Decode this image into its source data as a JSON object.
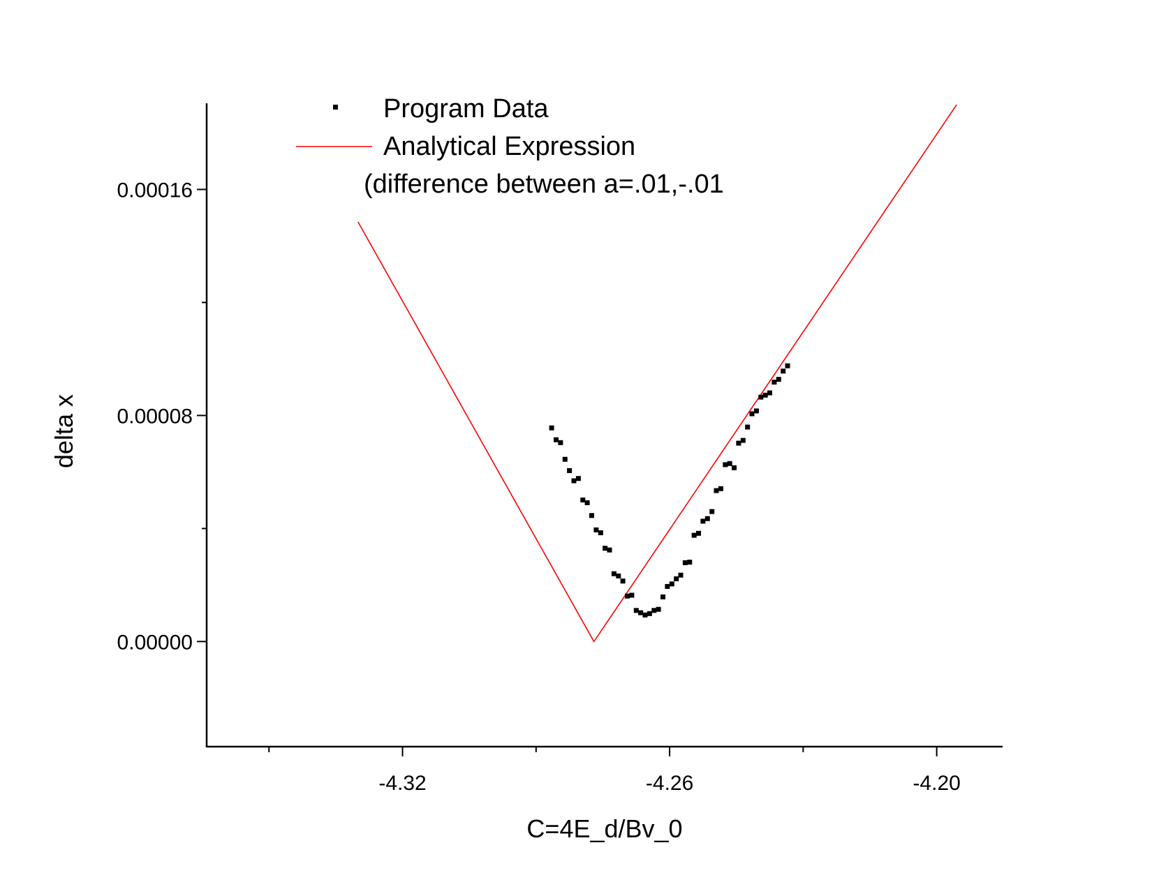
{
  "chart_data": {
    "type": "scatter",
    "xlabel": "C=4E_d/Bv_0",
    "ylabel": "delta x",
    "xlim": [
      -4.364,
      -4.1852
    ],
    "ylim": [
      -3.72e-05,
      0.00019
    ],
    "x_ticks": [
      -4.32,
      -4.26,
      -4.2
    ],
    "x_tick_labels": [
      "-4.32",
      "-4.26",
      "-4.20"
    ],
    "x_minor_ticks": [
      -4.35,
      -4.29,
      -4.23
    ],
    "y_ticks": [
      0.0,
      8e-05,
      0.00016
    ],
    "y_tick_labels": [
      "0.00000",
      "0.00008",
      "0.00016"
    ],
    "y_minor_ticks": [
      4e-05,
      0.00012
    ],
    "grid": false,
    "legend_position": "top-center",
    "legend_note": "(difference between a=.01,-.01",
    "colors": {
      "program_data": "#000000",
      "analytical_expression": "#ff0000"
    },
    "series": [
      {
        "name": "Program Data",
        "kind": "points",
        "x": [
          -4.2865,
          -4.2855,
          -4.2845,
          -4.2835,
          -4.2825,
          -4.2815,
          -4.2805,
          -4.2795,
          -4.2785,
          -4.2775,
          -4.2765,
          -4.2755,
          -4.2745,
          -4.2735,
          -4.2725,
          -4.2715,
          -4.2705,
          -4.2695,
          -4.2685,
          -4.2675,
          -4.2665,
          -4.2655,
          -4.2645,
          -4.2635,
          -4.2625,
          -4.2615,
          -4.2605,
          -4.2595,
          -4.2585,
          -4.2575,
          -4.2565,
          -4.2555,
          -4.2545,
          -4.2535,
          -4.2525,
          -4.2515,
          -4.2505,
          -4.2495,
          -4.2485,
          -4.2475,
          -4.2465,
          -4.2455,
          -4.2445,
          -4.2435,
          -4.2425,
          -4.2415,
          -4.2405,
          -4.2395,
          -4.2385,
          -4.2375,
          -4.2365,
          -4.2355,
          -4.2345,
          -4.2335
        ],
        "y": [
          7.56e-05,
          7.14e-05,
          7.04e-05,
          6.45e-05,
          6.05e-05,
          5.69e-05,
          5.77e-05,
          5.01e-05,
          4.91e-05,
          4.46e-05,
          3.95e-05,
          3.85e-05,
          3.3e-05,
          3.24e-05,
          2.4e-05,
          2.32e-05,
          2.14e-05,
          1.61e-05,
          1.64e-05,
          1.1e-05,
          1.02e-05,
          9.4e-06,
          9.9e-06,
          1.1e-05,
          1.14e-05,
          1.58e-05,
          1.95e-05,
          2.04e-05,
          2.22e-05,
          2.35e-05,
          2.79e-05,
          2.81e-05,
          3.76e-05,
          3.83e-05,
          4.26e-05,
          4.35e-05,
          4.6e-05,
          5.34e-05,
          5.41e-05,
          6.26e-05,
          6.3e-05,
          6.15e-05,
          7.02e-05,
          7.12e-05,
          7.59e-05,
          8.06e-05,
          8.16e-05,
          8.65e-05,
          8.72e-05,
          8.8e-05,
          9.18e-05,
          9.28e-05,
          9.57e-05,
          9.76e-05
        ]
      },
      {
        "name": "Analytical Expression",
        "kind": "line",
        "x": [
          -4.33,
          -4.277,
          -4.1953
        ],
        "y": [
          0.0001485,
          0.0,
          0.0001905
        ]
      }
    ]
  }
}
